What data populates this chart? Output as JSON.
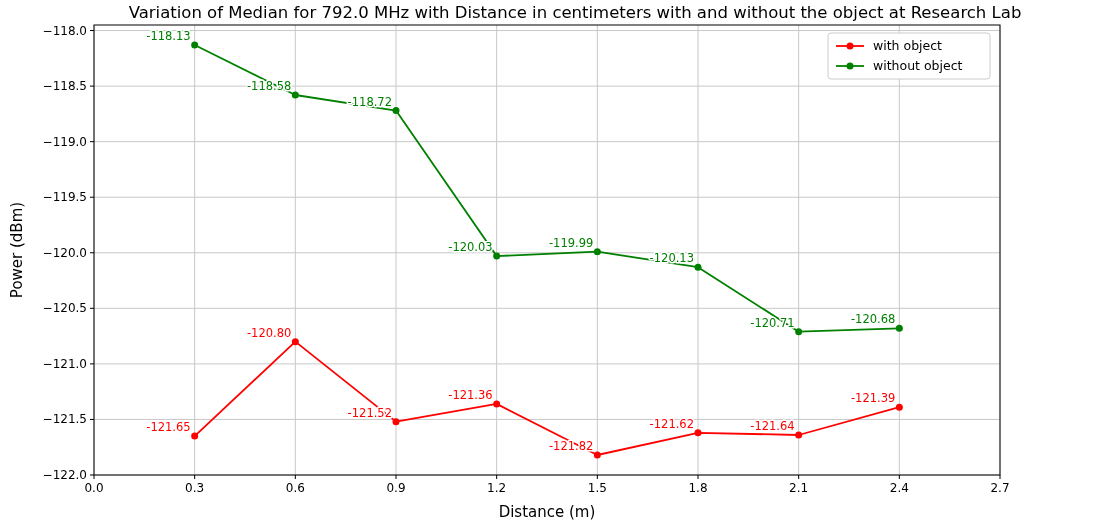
{
  "chart_data": {
    "type": "line",
    "title": "Variation of Median for 792.0 MHz  with Distance in centimeters with and without the object at Research Lab",
    "xlabel": "Distance (m)",
    "ylabel": "Power (dBm)",
    "x": [
      0.3,
      0.6,
      0.9,
      1.2,
      1.5,
      1.8,
      2.1,
      2.4
    ],
    "series": [
      {
        "name": "with object",
        "color": "#ff0000",
        "values": [
          -121.65,
          -120.8,
          -121.52,
          -121.36,
          -121.82,
          -121.62,
          -121.64,
          -121.39
        ],
        "value_labels": [
          "-121.65",
          "-120.80",
          "-121.52",
          "-121.36",
          "-121.82",
          "-121.62",
          "-121.64",
          "-121.39"
        ]
      },
      {
        "name": "without object",
        "color": "#008000",
        "values": [
          -118.13,
          -118.58,
          -118.72,
          -120.03,
          -119.99,
          -120.13,
          -120.71,
          -120.68
        ],
        "value_labels": [
          "-118.13",
          "-118.58",
          "-118.72",
          "-120.03",
          "-119.99",
          "-120.13",
          "-120.71",
          "-120.68"
        ]
      }
    ],
    "xlim": [
      0,
      2.7
    ],
    "xticks": [
      {
        "value": 0,
        "label": "0.0"
      },
      {
        "value": 0.3,
        "label": "0.3"
      },
      {
        "value": 0.6,
        "label": "0.6"
      },
      {
        "value": 0.9,
        "label": "0.9"
      },
      {
        "value": 1.2,
        "label": "1.2"
      },
      {
        "value": 1.5,
        "label": "1.5"
      },
      {
        "value": 1.8,
        "label": "1.8"
      },
      {
        "value": 2.1,
        "label": "2.1"
      },
      {
        "value": 2.4,
        "label": "2.4"
      },
      {
        "value": 2.7,
        "label": "2.7"
      }
    ],
    "ylim": [
      -122.0,
      -117.95
    ],
    "yticks": [
      {
        "value": -122,
        "label": "−122.0"
      },
      {
        "value": -121.5,
        "label": "−121.5"
      },
      {
        "value": -121,
        "label": "−121.0"
      },
      {
        "value": -120.5,
        "label": "−120.5"
      },
      {
        "value": -120,
        "label": "−120.0"
      },
      {
        "value": -119.5,
        "label": "−119.5"
      },
      {
        "value": -119,
        "label": "−119.0"
      },
      {
        "value": -118.5,
        "label": "−118.5"
      },
      {
        "value": -118,
        "label": "−118.0"
      }
    ],
    "grid": true,
    "legend": "top right",
    "marker": "circle",
    "line_style": "solid"
  }
}
